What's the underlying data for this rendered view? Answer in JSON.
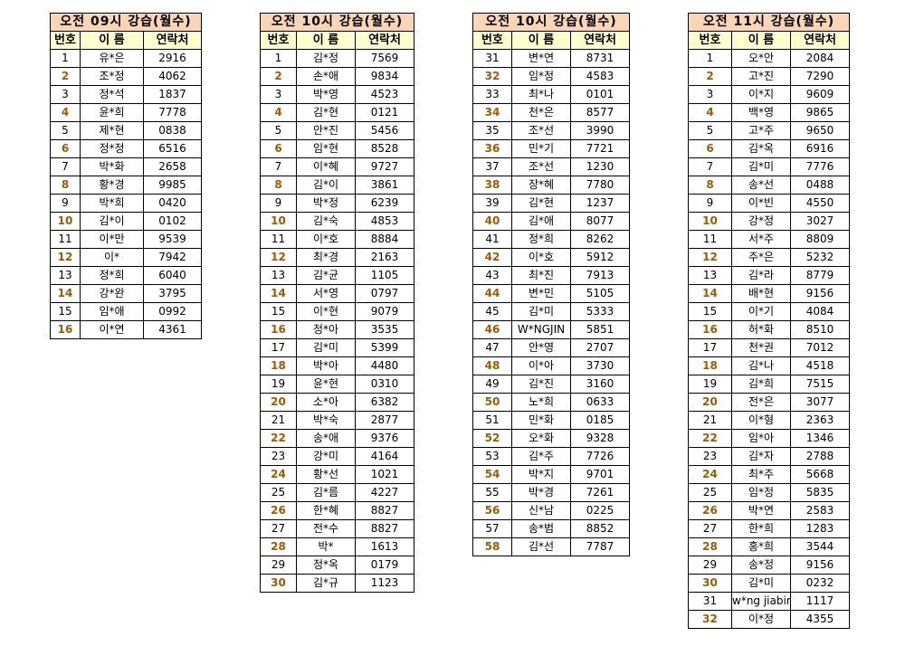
{
  "tables": [
    {
      "title": "오전 09시 강습(월수)",
      "headers": [
        "번호",
        "이 름",
        "연락처"
      ],
      "rows": [
        [
          "1",
          "유*은",
          "2916"
        ],
        [
          "2",
          "조*정",
          "4062"
        ],
        [
          "3",
          "정*석",
          "1837"
        ],
        [
          "4",
          "윤*희",
          "7778"
        ],
        [
          "5",
          "제*현",
          "0838"
        ],
        [
          "6",
          "정*정",
          "6516"
        ],
        [
          "7",
          "박*화",
          "2658"
        ],
        [
          "8",
          "황*경",
          "9985"
        ],
        [
          "9",
          "박*희",
          "0420"
        ],
        [
          "10",
          "김*이",
          "0102"
        ],
        [
          "11",
          "이*만",
          "9539"
        ],
        [
          "12",
          "이*",
          "7942"
        ],
        [
          "13",
          "정*희",
          "6040"
        ],
        [
          "14",
          "강*완",
          "3795"
        ],
        [
          "15",
          "임*애",
          "0992"
        ],
        [
          "16",
          "이*연",
          "4361"
        ]
      ]
    },
    {
      "title": "오전 10시 강습(월수)",
      "headers": [
        "번호",
        "이 름",
        "연락처"
      ],
      "rows": [
        [
          "1",
          "김*정",
          "7569"
        ],
        [
          "2",
          "손*애",
          "9834"
        ],
        [
          "3",
          "박*영",
          "4523"
        ],
        [
          "4",
          "김*현",
          "0121"
        ],
        [
          "5",
          "안*진",
          "5456"
        ],
        [
          "6",
          "임*현",
          "8528"
        ],
        [
          "7",
          "이*혜",
          "9727"
        ],
        [
          "8",
          "김*이",
          "3861"
        ],
        [
          "9",
          "박*정",
          "6239"
        ],
        [
          "10",
          "김*숙",
          "4853"
        ],
        [
          "11",
          "이*호",
          "8884"
        ],
        [
          "12",
          "최*경",
          "2163"
        ],
        [
          "13",
          "김*균",
          "1105"
        ],
        [
          "14",
          "서*영",
          "0797"
        ],
        [
          "15",
          "이*현",
          "9079"
        ],
        [
          "16",
          "정*아",
          "3535"
        ],
        [
          "17",
          "김*미",
          "5399"
        ],
        [
          "18",
          "박*아",
          "4480"
        ],
        [
          "19",
          "윤*현",
          "0310"
        ],
        [
          "20",
          "소*아",
          "6382"
        ],
        [
          "21",
          "박*숙",
          "2877"
        ],
        [
          "22",
          "송*애",
          "9376"
        ],
        [
          "23",
          "강*미",
          "4164"
        ],
        [
          "24",
          "황*선",
          "1021"
        ],
        [
          "25",
          "김*름",
          "4227"
        ],
        [
          "26",
          "한*혜",
          "8827"
        ],
        [
          "27",
          "전*수",
          "8827"
        ],
        [
          "28",
          "박*",
          "1613"
        ],
        [
          "29",
          "정*옥",
          "0179"
        ],
        [
          "30",
          "김*규",
          "1123"
        ]
      ]
    },
    {
      "title": "오전 10시 강습(월수)",
      "headers": [
        "번호",
        "이 름",
        "연락처"
      ],
      "rows": [
        [
          "31",
          "변*연",
          "8731"
        ],
        [
          "32",
          "임*정",
          "4583"
        ],
        [
          "33",
          "최*나",
          "0101"
        ],
        [
          "34",
          "천*은",
          "8577"
        ],
        [
          "35",
          "조*선",
          "3990"
        ],
        [
          "36",
          "민*기",
          "7721"
        ],
        [
          "37",
          "조*선",
          "1230"
        ],
        [
          "38",
          "장*혜",
          "7780"
        ],
        [
          "39",
          "김*현",
          "1237"
        ],
        [
          "40",
          "김*애",
          "8077"
        ],
        [
          "41",
          "정*희",
          "8262"
        ],
        [
          "42",
          "이*호",
          "5912"
        ],
        [
          "43",
          "최*진",
          "7913"
        ],
        [
          "44",
          "변*민",
          "5105"
        ],
        [
          "45",
          "김*미",
          "5333"
        ],
        [
          "46",
          "W*NGJIN",
          "5851"
        ],
        [
          "47",
          "안*영",
          "2707"
        ],
        [
          "48",
          "이*아",
          "3730"
        ],
        [
          "49",
          "김*진",
          "3160"
        ],
        [
          "50",
          "노*희",
          "0633"
        ],
        [
          "51",
          "민*화",
          "0185"
        ],
        [
          "52",
          "오*화",
          "9328"
        ],
        [
          "53",
          "김*주",
          "7726"
        ],
        [
          "54",
          "박*지",
          "9701"
        ],
        [
          "55",
          "박*경",
          "7261"
        ],
        [
          "56",
          "신*남",
          "0225"
        ],
        [
          "57",
          "송*범",
          "8852"
        ],
        [
          "58",
          "김*선",
          "7787"
        ]
      ]
    },
    {
      "title": "오전 11시 강습(월수)",
      "headers": [
        "번호",
        "이 름",
        "연락처"
      ],
      "rows": [
        [
          "1",
          "오*안",
          "2084"
        ],
        [
          "2",
          "고*진",
          "7290"
        ],
        [
          "3",
          "이*지",
          "9609"
        ],
        [
          "4",
          "백*영",
          "9865"
        ],
        [
          "5",
          "고*주",
          "9650"
        ],
        [
          "6",
          "김*옥",
          "6916"
        ],
        [
          "7",
          "김*미",
          "7776"
        ],
        [
          "8",
          "송*선",
          "0488"
        ],
        [
          "9",
          "이*빈",
          "4550"
        ],
        [
          "10",
          "강*정",
          "3027"
        ],
        [
          "11",
          "서*주",
          "8809"
        ],
        [
          "12",
          "주*은",
          "5232"
        ],
        [
          "13",
          "김*라",
          "8779"
        ],
        [
          "14",
          "배*현",
          "9156"
        ],
        [
          "15",
          "이*기",
          "4084"
        ],
        [
          "16",
          "허*화",
          "8510"
        ],
        [
          "17",
          "천*권",
          "7012"
        ],
        [
          "18",
          "김*나",
          "4518"
        ],
        [
          "19",
          "김*희",
          "7515"
        ],
        [
          "20",
          "전*은",
          "3077"
        ],
        [
          "21",
          "이*형",
          "2363"
        ],
        [
          "22",
          "임*아",
          "1346"
        ],
        [
          "23",
          "김*자",
          "2788"
        ],
        [
          "24",
          "최*주",
          "5668"
        ],
        [
          "25",
          "임*정",
          "5835"
        ],
        [
          "26",
          "박*연",
          "2583"
        ],
        [
          "27",
          "한*희",
          "1283"
        ],
        [
          "28",
          "홍*희",
          "3544"
        ],
        [
          "29",
          "송*정",
          "9156"
        ],
        [
          "30",
          "김*미",
          "0232"
        ],
        [
          "31",
          "w*ng jiabin",
          "1117"
        ],
        [
          "32",
          "이*정",
          "4355"
        ]
      ]
    }
  ],
  "colors": {
    "title_bg": "#fcd5b4",
    "header_bg": "#ffffcc",
    "even_number": "#a05a00"
  }
}
